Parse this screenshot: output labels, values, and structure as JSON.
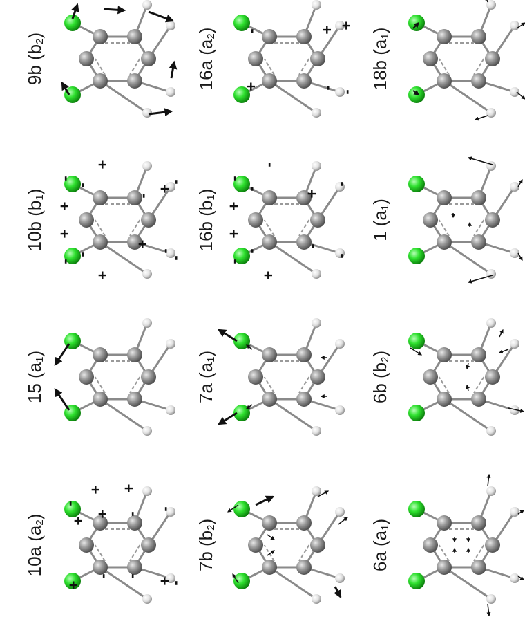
{
  "modes": [
    {
      "name": "9b",
      "sym": "b",
      "sub": "2"
    },
    {
      "name": "16a",
      "sym": "a",
      "sub": "2"
    },
    {
      "name": "18b",
      "sym": "a",
      "sub": "1"
    },
    {
      "name": "10b",
      "sym": "b",
      "sub": "1"
    },
    {
      "name": "16b",
      "sym": "b",
      "sub": "1"
    },
    {
      "name": "1",
      "sym": "a",
      "sub": "1"
    },
    {
      "name": "15",
      "sym": "a",
      "sub": "1"
    },
    {
      "name": "7a",
      "sym": "a",
      "sub": "1"
    },
    {
      "name": "6b",
      "sym": "b",
      "sub": "2"
    },
    {
      "name": "10a",
      "sym": "a",
      "sub": "2"
    },
    {
      "name": "7b",
      "sym": "b",
      "sub": "2"
    },
    {
      "name": "6a",
      "sym": "a",
      "sub": "1"
    }
  ],
  "colors": {
    "chlorine": "#22dd22",
    "carbon": "#8c8c8c",
    "hydrogen": "#e6e6e6",
    "arrow": "#111111"
  },
  "signs": {
    "10b": [
      "-",
      "+",
      "+",
      "-",
      "-",
      "-",
      "+",
      "+",
      "-",
      "+",
      "+",
      "-",
      "-",
      "-"
    ],
    "16a": [
      "-",
      "+",
      "+",
      "+",
      "-",
      "-"
    ],
    "16b": [
      "-",
      "+",
      "+",
      "-",
      "-",
      "-",
      "-",
      "+",
      "+",
      "-",
      "-",
      "-"
    ],
    "10a": [
      "-",
      "+",
      "+",
      "+",
      "+",
      "+",
      "-",
      "-",
      "-",
      "-",
      "+",
      "-"
    ]
  }
}
